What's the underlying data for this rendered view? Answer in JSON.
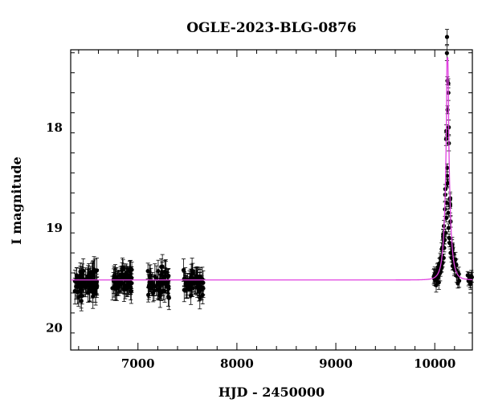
{
  "chart_data": {
    "type": "scatter",
    "title": "OGLE-2023-BLG-0876",
    "xlabel": "HJD - 2450000",
    "ylabel": "I magnitude",
    "xlim": [
      6320,
      10380
    ],
    "ylim": [
      20.22,
      17.22
    ],
    "y_inverted": true,
    "x_ticks": [
      7000,
      8000,
      9000,
      10000
    ],
    "x_tick_labels": [
      "7000",
      "8000",
      "9000",
      "10000"
    ],
    "y_ticks": [
      18,
      19,
      20
    ],
    "y_tick_labels": [
      "18",
      "19",
      "20"
    ],
    "grid": false,
    "legend": "none",
    "baseline_magnitude": 19.52,
    "series": [
      {
        "kind": "observations",
        "marker": "filled-circle",
        "color": "#000000",
        "error_bars": true,
        "seasons": [
          {
            "x_range": [
              6360,
              6590
            ],
            "mag_center": 19.55,
            "mag_scatter": 0.12,
            "error": 0.1,
            "n": 75
          },
          {
            "x_range": [
              6740,
              6950
            ],
            "mag_center": 19.53,
            "mag_scatter": 0.1,
            "error": 0.1,
            "n": 65
          },
          {
            "x_range": [
              7100,
              7320
            ],
            "mag_center": 19.55,
            "mag_scatter": 0.12,
            "error": 0.1,
            "n": 60
          },
          {
            "x_range": [
              7460,
              7660
            ],
            "mag_center": 19.55,
            "mag_scatter": 0.1,
            "error": 0.1,
            "n": 55
          },
          {
            "x_range": [
              9990,
              10250
            ],
            "mag_center": 19.5,
            "mag_scatter": 0.1,
            "error": 0.06,
            "n": 70
          },
          {
            "x_range": [
              10330,
              10380
            ],
            "mag_center": 19.52,
            "mag_scatter": 0.05,
            "error": 0.05,
            "n": 8
          }
        ],
        "event_points": [
          {
            "x": 10128,
            "y": 17.53
          },
          {
            "x": 10129,
            "y": 17.82
          },
          {
            "x": 10127,
            "y": 18.07
          },
          {
            "x": 10125,
            "y": 18.4
          },
          {
            "x": 10126,
            "y": 18.48
          },
          {
            "x": 10124,
            "y": 18.56
          },
          {
            "x": 10132,
            "y": 18.55
          },
          {
            "x": 10122,
            "y": 18.75
          },
          {
            "x": 10136,
            "y": 18.85
          },
          {
            "x": 10118,
            "y": 18.9
          },
          {
            "x": 10140,
            "y": 19.0
          },
          {
            "x": 10110,
            "y": 19.05
          },
          {
            "x": 10145,
            "y": 19.1
          },
          {
            "x": 10100,
            "y": 19.12
          },
          {
            "x": 10150,
            "y": 19.15
          },
          {
            "x": 10095,
            "y": 19.2
          },
          {
            "x": 10160,
            "y": 19.25
          },
          {
            "x": 10090,
            "y": 19.3
          },
          {
            "x": 10170,
            "y": 19.3
          },
          {
            "x": 10080,
            "y": 19.35
          },
          {
            "x": 10180,
            "y": 19.38
          },
          {
            "x": 10070,
            "y": 19.4
          },
          {
            "x": 10200,
            "y": 19.42
          }
        ]
      },
      {
        "kind": "model",
        "color": "#e040e0",
        "t0": 10129,
        "tE": 48,
        "u0": 0.034,
        "peak_magnitude": 17.3
      }
    ]
  }
}
